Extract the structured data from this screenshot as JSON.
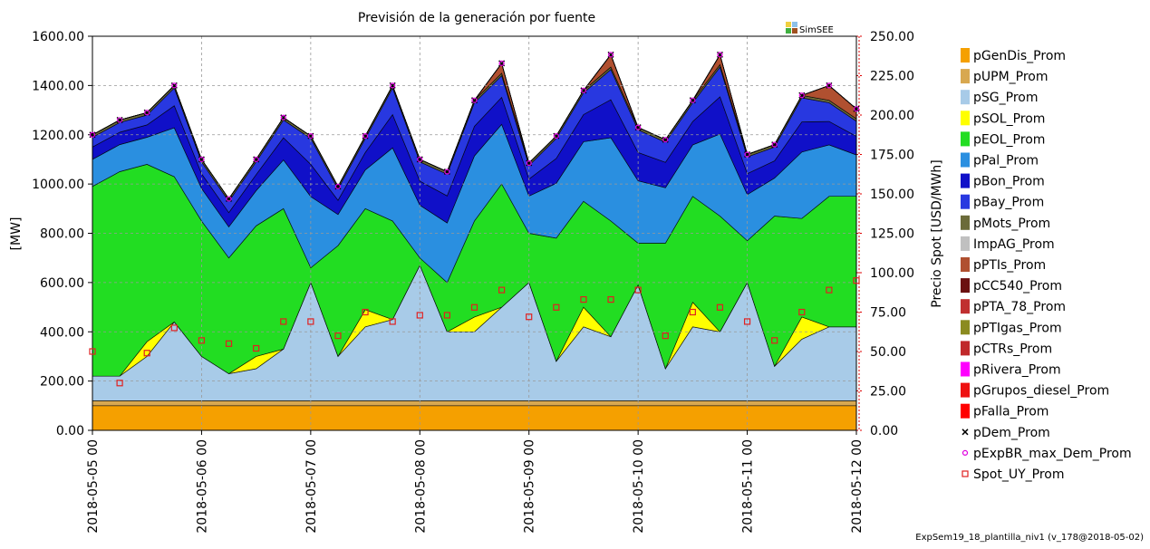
{
  "chart_data": {
    "type": "stacked_area",
    "title": "Previsión de la generación por fuente",
    "ylabel": "[MW]",
    "y2label": "Precio Spot [USD/MWh]",
    "logo": "SimSEE",
    "footer": "ExpSem19_18_plantilla_niv1 (v_178@2018-05-02)",
    "grid": true,
    "legend": "right",
    "x": [
      "2018-05-05 00",
      "2018-05-05 06",
      "2018-05-05 12",
      "2018-05-05 18",
      "2018-05-06 00",
      "2018-05-06 06",
      "2018-05-06 12",
      "2018-05-06 18",
      "2018-05-07 00",
      "2018-05-07 06",
      "2018-05-07 12",
      "2018-05-07 18",
      "2018-05-08 00",
      "2018-05-08 06",
      "2018-05-08 12",
      "2018-05-08 18",
      "2018-05-09 00",
      "2018-05-09 06",
      "2018-05-09 12",
      "2018-05-09 18",
      "2018-05-10 00",
      "2018-05-10 06",
      "2018-05-10 12",
      "2018-05-10 18",
      "2018-05-11 00",
      "2018-05-11 06",
      "2018-05-11 12",
      "2018-05-11 18",
      "2018-05-12 00"
    ],
    "xticks": [
      "2018-05-05 00",
      "2018-05-06 00",
      "2018-05-07 00",
      "2018-05-08 00",
      "2018-05-09 00",
      "2018-05-10 00",
      "2018-05-11 00",
      "2018-05-12 00"
    ],
    "ylim": [
      0,
      1600
    ],
    "yticks": [
      {
        "value": 0,
        "label": "0.00"
      },
      {
        "value": 200,
        "label": "200.00"
      },
      {
        "value": 400,
        "label": "400.00"
      },
      {
        "value": 600,
        "label": "600.00"
      },
      {
        "value": 800,
        "label": "800.00"
      },
      {
        "value": 1000,
        "label": "1000.00"
      },
      {
        "value": 1200,
        "label": "1200.00"
      },
      {
        "value": 1400,
        "label": "1400.00"
      },
      {
        "value": 1600,
        "label": "1600.00"
      }
    ],
    "y2lim": [
      0,
      250
    ],
    "y2ticks": [
      {
        "value": 0,
        "label": "0.00"
      },
      {
        "value": 25,
        "label": "25.00"
      },
      {
        "value": 50,
        "label": "50.00"
      },
      {
        "value": 75,
        "label": "75.00"
      },
      {
        "value": 100,
        "label": "100.00"
      },
      {
        "value": 125,
        "label": "125.00"
      },
      {
        "value": 150,
        "label": "150.00"
      },
      {
        "value": 175,
        "label": "175.00"
      },
      {
        "value": 200,
        "label": "200.00"
      },
      {
        "value": 225,
        "label": "225.00"
      },
      {
        "value": 250,
        "label": "250.00"
      }
    ],
    "series": [
      {
        "name": "pGenDis_Prom",
        "color": "#f5a000",
        "values": [
          100,
          100,
          100,
          100,
          100,
          100,
          100,
          100,
          100,
          100,
          100,
          100,
          100,
          100,
          100,
          100,
          100,
          100,
          100,
          100,
          100,
          100,
          100,
          100,
          100,
          100,
          100,
          100,
          100
        ]
      },
      {
        "name": "pUPM_Prom",
        "color": "#d8a850",
        "values": [
          20,
          20,
          20,
          20,
          20,
          20,
          20,
          20,
          20,
          20,
          20,
          20,
          20,
          20,
          20,
          20,
          20,
          20,
          20,
          20,
          20,
          20,
          20,
          20,
          20,
          20,
          20,
          20,
          20
        ]
      },
      {
        "name": "pSG_Prom",
        "color": "#a8cbe8",
        "values": [
          100,
          100,
          180,
          320,
          180,
          110,
          130,
          210,
          480,
          180,
          300,
          330,
          550,
          280,
          280,
          380,
          480,
          160,
          300,
          260,
          470,
          130,
          300,
          280,
          480,
          140,
          250,
          300,
          300
        ]
      },
      {
        "name": "pSOL_Prom",
        "color": "#ffff00",
        "values": [
          0,
          0,
          60,
          0,
          0,
          0,
          50,
          0,
          0,
          0,
          70,
          0,
          0,
          0,
          60,
          0,
          0,
          0,
          80,
          0,
          0,
          0,
          100,
          0,
          0,
          0,
          90,
          0,
          0
        ]
      },
      {
        "name": "pEOL_Prom",
        "color": "#22dd22",
        "values": [
          770,
          830,
          720,
          590,
          550,
          470,
          530,
          570,
          60,
          450,
          410,
          400,
          30,
          200,
          390,
          500,
          200,
          500,
          430,
          470,
          170,
          510,
          430,
          470,
          170,
          610,
          400,
          530,
          530
        ]
      },
      {
        "name": "pPal_Prom",
        "color": "#2a8fe0",
        "values": [
          110,
          110,
          110,
          198,
          132,
          126,
          143,
          198,
          289,
          126,
          157,
          297,
          214,
          242,
          264,
          242,
          151,
          223,
          242,
          338,
          253,
          225,
          209,
          333,
          187,
          154,
          270,
          209,
          168
        ]
      },
      {
        "name": "pBon_Prom",
        "color": "#1010c8",
        "values": [
          50,
          50,
          50,
          90,
          60,
          58,
          65,
          90,
          131,
          58,
          71,
          135,
          98,
          110,
          120,
          110,
          69,
          101,
          110,
          154,
          115,
          103,
          95,
          151,
          85,
          70,
          122,
          95,
          76
        ]
      },
      {
        "name": "pBay_Prom",
        "color": "#2838e0",
        "values": [
          40,
          40,
          40,
          72,
          48,
          46,
          52,
          72,
          105,
          46,
          57,
          108,
          78,
          88,
          96,
          88,
          55,
          81,
          88,
          123,
          92,
          82,
          76,
          121,
          68,
          56,
          98,
          76,
          61
        ]
      },
      {
        "name": "pMots_Prom",
        "color": "#6b6b3a",
        "values": [
          10,
          10,
          10,
          10,
          10,
          10,
          10,
          10,
          10,
          10,
          10,
          10,
          10,
          10,
          10,
          10,
          10,
          10,
          10,
          10,
          10,
          10,
          10,
          10,
          10,
          10,
          10,
          10,
          10
        ]
      },
      {
        "name": "ImpAG_Prom",
        "color": "#c0c0c0",
        "values": [
          0,
          0,
          0,
          0,
          0,
          0,
          0,
          0,
          0,
          0,
          0,
          0,
          0,
          0,
          0,
          0,
          0,
          0,
          0,
          0,
          0,
          0,
          0,
          0,
          0,
          0,
          0,
          0,
          0
        ]
      },
      {
        "name": "pPTIs_Prom",
        "color": "#b05030",
        "values": [
          0,
          0,
          0,
          0,
          0,
          0,
          0,
          0,
          0,
          0,
          0,
          0,
          0,
          0,
          0,
          40,
          0,
          0,
          0,
          50,
          0,
          0,
          0,
          40,
          0,
          0,
          0,
          60,
          40
        ]
      },
      {
        "name": "pCC540_Prom",
        "color": "#6b1010",
        "values": [
          0,
          0,
          0,
          0,
          0,
          0,
          0,
          0,
          0,
          0,
          0,
          0,
          0,
          0,
          0,
          0,
          0,
          0,
          0,
          0,
          0,
          0,
          0,
          0,
          0,
          0,
          0,
          0,
          0
        ]
      },
      {
        "name": "pPTA_78_Prom",
        "color": "#c03030",
        "values": [
          0,
          0,
          0,
          0,
          0,
          0,
          0,
          0,
          0,
          0,
          0,
          0,
          0,
          0,
          0,
          0,
          0,
          0,
          0,
          0,
          0,
          0,
          0,
          0,
          0,
          0,
          0,
          0,
          0
        ]
      },
      {
        "name": "pPTIgas_Prom",
        "color": "#8b8b20",
        "values": [
          0,
          0,
          0,
          0,
          0,
          0,
          0,
          0,
          0,
          0,
          0,
          0,
          0,
          0,
          0,
          0,
          0,
          0,
          0,
          0,
          0,
          0,
          0,
          0,
          0,
          0,
          0,
          0,
          0
        ]
      },
      {
        "name": "pCTRs_Prom",
        "color": "#c0282a",
        "values": [
          0,
          0,
          0,
          0,
          0,
          0,
          0,
          0,
          0,
          0,
          0,
          0,
          0,
          0,
          0,
          0,
          0,
          0,
          0,
          0,
          0,
          0,
          0,
          0,
          0,
          0,
          0,
          0,
          0
        ]
      },
      {
        "name": "pRivera_Prom",
        "color": "#ff00ff",
        "values": [
          0,
          0,
          0,
          0,
          0,
          0,
          0,
          0,
          0,
          0,
          0,
          0,
          0,
          0,
          0,
          0,
          0,
          0,
          0,
          0,
          0,
          0,
          0,
          0,
          0,
          0,
          0,
          0,
          0
        ]
      },
      {
        "name": "pGrupos_diesel_Prom",
        "color": "#ee1111",
        "values": [
          0,
          0,
          0,
          0,
          0,
          0,
          0,
          0,
          0,
          0,
          0,
          0,
          0,
          0,
          0,
          0,
          0,
          0,
          0,
          0,
          0,
          0,
          0,
          0,
          0,
          0,
          0,
          0,
          0
        ]
      },
      {
        "name": "pFalla_Prom",
        "color": "#ff0000",
        "values": [
          0,
          0,
          0,
          0,
          0,
          0,
          0,
          0,
          0,
          0,
          0,
          0,
          0,
          0,
          0,
          0,
          0,
          0,
          0,
          0,
          0,
          0,
          0,
          0,
          0,
          0,
          0,
          0,
          0
        ]
      },
      {
        "name": "pDem_Prom",
        "color": "#000000",
        "marker": "x",
        "values": [
          1200,
          1260,
          1290,
          1400,
          1100,
          940,
          1100,
          1270,
          1195,
          990,
          1195,
          1400,
          1100,
          1050,
          1340,
          1490,
          1085,
          1195,
          1380,
          1525,
          1230,
          1180,
          1340,
          1525,
          1120,
          1160,
          1360,
          1400,
          1305
        ]
      },
      {
        "name": "pExpBR_max_Dem_Prom",
        "color": "#e000e0",
        "marker": "circle",
        "values": [
          1200,
          1260,
          1290,
          1400,
          1100,
          940,
          1100,
          1270,
          1195,
          990,
          1195,
          1400,
          1100,
          1050,
          1340,
          1490,
          1085,
          1195,
          1380,
          1525,
          1230,
          1180,
          1340,
          1525,
          1120,
          1160,
          1360,
          1400,
          1305
        ]
      },
      {
        "name": "Spot_UY_Prom",
        "color": "#e02020",
        "marker": "square",
        "axis": "y2",
        "values": [
          50,
          30,
          49,
          65,
          57,
          55,
          52,
          69,
          69,
          60,
          75,
          69,
          73,
          73,
          78,
          89,
          72,
          78,
          83,
          83,
          89,
          60,
          75,
          78,
          69,
          57,
          75,
          89,
          95
        ]
      }
    ]
  }
}
